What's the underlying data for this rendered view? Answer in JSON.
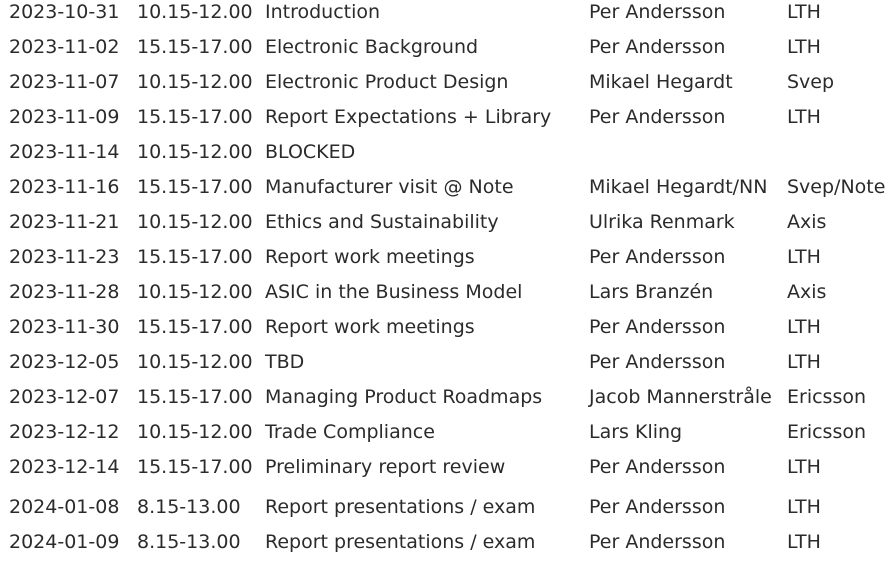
{
  "schedule": {
    "rows": [
      {
        "date": "2023-10-31",
        "time": "10.15-12.00",
        "title": "Introduction",
        "speaker": "Per Andersson",
        "org": "LTH"
      },
      {
        "date": "2023-11-02",
        "time": "15.15-17.00",
        "title": "Electronic Background",
        "speaker": "Per Andersson",
        "org": "LTH"
      },
      {
        "date": "2023-11-07",
        "time": "10.15-12.00",
        "title": "Electronic Product Design",
        "speaker": "Mikael Hegardt",
        "org": "Svep"
      },
      {
        "date": "2023-11-09",
        "time": "15.15-17.00",
        "title": "Report Expectations + Library",
        "speaker": "Per Andersson",
        "org": "LTH"
      },
      {
        "date": "2023-11-14",
        "time": "10.15-12.00",
        "title": "BLOCKED",
        "speaker": "",
        "org": ""
      },
      {
        "date": "2023-11-16",
        "time": "15.15-17.00",
        "title": "Manufacturer visit @ Note",
        "speaker": "Mikael Hegardt/NN",
        "org": "Svep/Note"
      },
      {
        "date": "2023-11-21",
        "time": "10.15-12.00",
        "title": "Ethics and Sustainability",
        "speaker": "Ulrika Renmark",
        "org": "Axis"
      },
      {
        "date": "2023-11-23",
        "time": "15.15-17.00",
        "title": "Report work meetings",
        "speaker": "Per Andersson",
        "org": "LTH"
      },
      {
        "date": "2023-11-28",
        "time": "10.15-12.00",
        "title": "ASIC in the Business Model",
        "speaker": "Lars Branzén",
        "org": "Axis"
      },
      {
        "date": "2023-11-30",
        "time": "15.15-17.00",
        "title": "Report work meetings",
        "speaker": "Per Andersson",
        "org": "LTH"
      },
      {
        "date": "2023-12-05",
        "time": "10.15-12.00",
        "title": "TBD",
        "speaker": "Per Andersson",
        "org": "LTH"
      },
      {
        "date": "2023-12-07",
        "time": "15.15-17.00",
        "title": "Managing Product Roadmaps",
        "speaker": "Jacob Mannerstråle",
        "org": "Ericsson"
      },
      {
        "date": "2023-12-12",
        "time": "10.15-12.00",
        "title": "Trade Compliance",
        "speaker": "Lars Kling",
        "org": "Ericsson"
      },
      {
        "date": "2023-12-14",
        "time": "15.15-17.00",
        "title": "Preliminary report review",
        "speaker": "Per Andersson",
        "org": "LTH"
      },
      {
        "date": "2024-01-08",
        "time": "8.15-13.00",
        "title": "Report presentations / exam",
        "speaker": "Per Andersson",
        "org": "LTH"
      },
      {
        "date": "2024-01-09",
        "time": "8.15-13.00",
        "title": "Report presentations / exam",
        "speaker": "Per Andersson",
        "org": "LTH"
      }
    ]
  }
}
